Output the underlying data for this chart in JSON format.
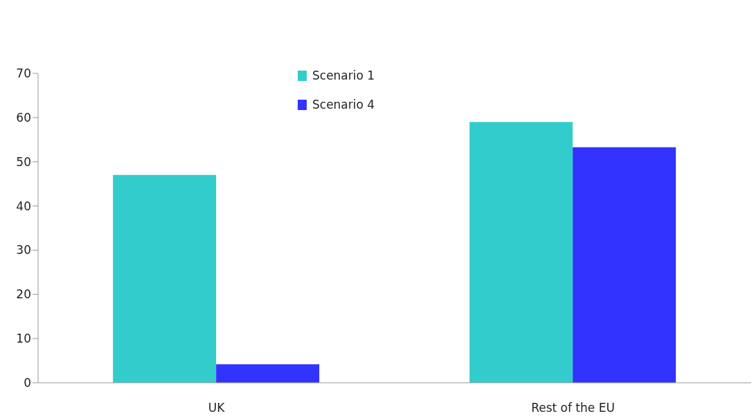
{
  "chart_data": {
    "type": "bar",
    "categories": [
      "UK",
      "Rest of the EU"
    ],
    "series": [
      {
        "name": "Scenario 1",
        "color": "#33cccc",
        "values": [
          47,
          59
        ]
      },
      {
        "name": "Scenario 4",
        "color": "#3333ff",
        "values": [
          4.2,
          53.3
        ]
      }
    ],
    "ylim": [
      0,
      70
    ],
    "yticks": [
      0,
      10,
      20,
      30,
      40,
      50,
      60,
      70
    ],
    "grid": false,
    "legend": "top"
  }
}
